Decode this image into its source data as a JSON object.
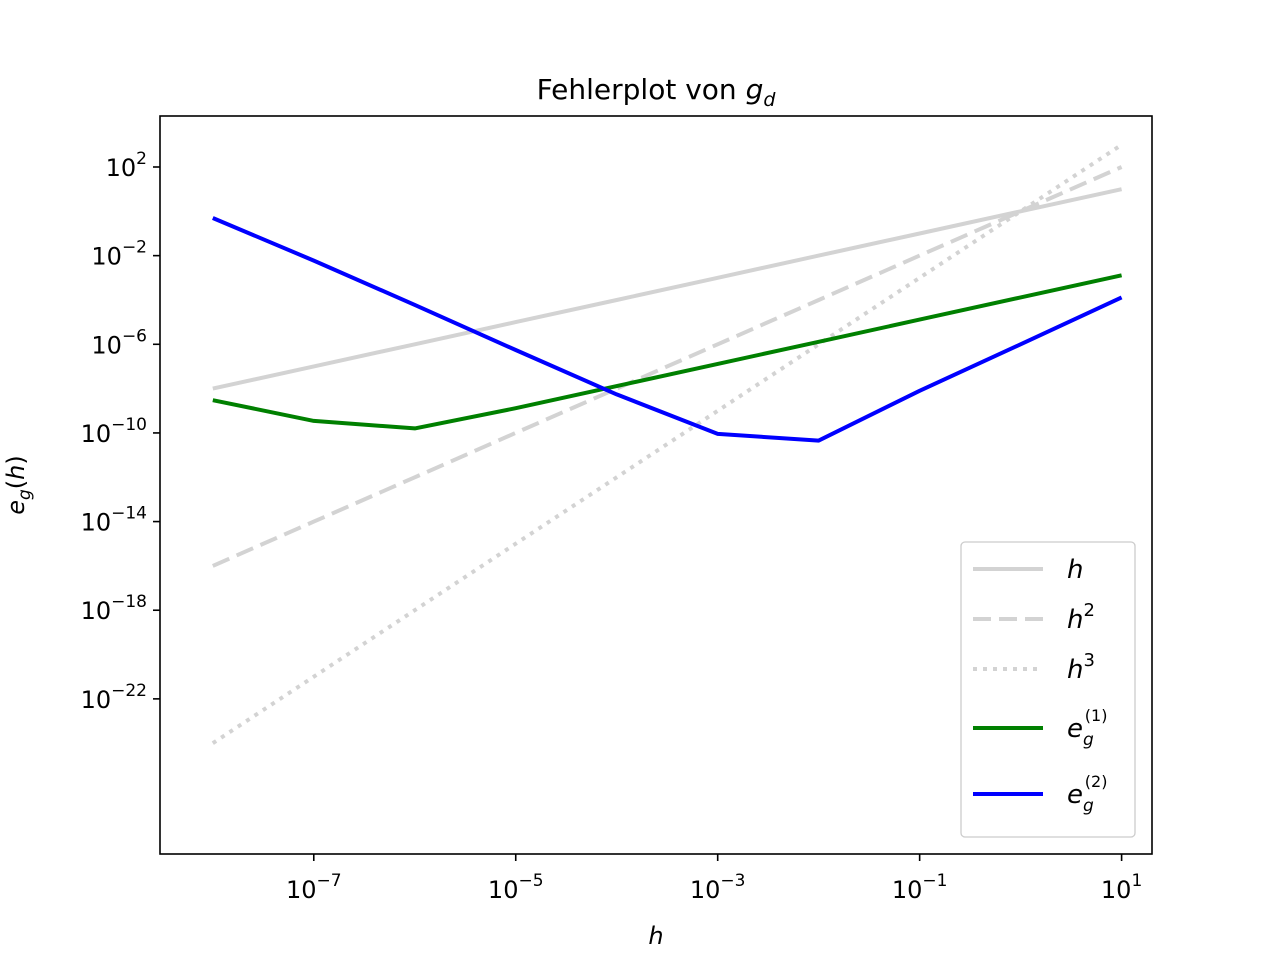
{
  "chart_data": {
    "type": "line",
    "title": "Fehlerplot von g_d",
    "title_parts": {
      "prefix": "Fehlerplot von ",
      "var": "g",
      "sub": "d"
    },
    "xlabel": "h",
    "ylabel": "e_g(h)",
    "ylabel_parts": {
      "e": "e",
      "g": "g",
      "paren": "(h)"
    },
    "x_scale": "log",
    "y_scale": "log",
    "xlim": [
      3e-09,
      20
    ],
    "ylim": [
      1e-29,
      20000.0
    ],
    "x_ticks": [
      {
        "value": 1e-07,
        "base": "10",
        "exp": "−7"
      },
      {
        "value": 1e-05,
        "base": "10",
        "exp": "−5"
      },
      {
        "value": 0.001,
        "base": "10",
        "exp": "−3"
      },
      {
        "value": 0.1,
        "base": "10",
        "exp": "−1"
      },
      {
        "value": 10,
        "base": "10",
        "exp": "1"
      }
    ],
    "y_ticks": [
      {
        "value": 100.0,
        "base": "10",
        "exp": "2"
      },
      {
        "value": 0.01,
        "base": "10",
        "exp": "−2"
      },
      {
        "value": 1e-06,
        "base": "10",
        "exp": "−6"
      },
      {
        "value": 1e-10,
        "base": "10",
        "exp": "−10"
      },
      {
        "value": 1e-14,
        "base": "10",
        "exp": "−14"
      },
      {
        "value": 1e-18,
        "base": "10",
        "exp": "−18"
      },
      {
        "value": 1e-22,
        "base": "10",
        "exp": "−22"
      }
    ],
    "grid": false,
    "legend_position": "lower-right",
    "x": [
      1e-08,
      1e-07,
      1e-06,
      1e-05,
      0.0001,
      0.001,
      0.01,
      0.1,
      1,
      10
    ],
    "series": [
      {
        "key": "h",
        "color": "#d3d3d3",
        "style": "solid",
        "values": [
          1e-08,
          1e-07,
          1e-06,
          1e-05,
          0.0001,
          0.001,
          0.01,
          0.1,
          1,
          10
        ]
      },
      {
        "key": "h2",
        "color": "#d3d3d3",
        "style": "dashed",
        "values": [
          1e-16,
          1e-14,
          1e-12,
          1e-10,
          1e-08,
          1e-06,
          0.0001,
          0.01,
          1,
          100
        ]
      },
      {
        "key": "h3",
        "color": "#d3d3d3",
        "style": "dotted",
        "values": [
          1e-24,
          1e-21,
          1e-18,
          1e-15,
          1e-12,
          1e-09,
          1e-06,
          0.001,
          1,
          1000
        ]
      },
      {
        "key": "eg1",
        "color": "#008000",
        "style": "solid",
        "values": [
          3e-09,
          3.5e-10,
          1.6e-10,
          1.3e-09,
          1.3e-08,
          1.3e-07,
          1.3e-06,
          1.3e-05,
          0.00013,
          0.0013
        ]
      },
      {
        "key": "eg2",
        "color": "#0000ff",
        "style": "solid",
        "values": [
          0.5,
          0.006,
          6e-05,
          5.5e-07,
          5.5e-09,
          9e-11,
          4.5e-11,
          8e-09,
          1e-06,
          0.00013
        ]
      }
    ],
    "legend": [
      {
        "key": "h",
        "label": "h",
        "exp": ""
      },
      {
        "key": "h2",
        "label": "h",
        "exp": "2"
      },
      {
        "key": "h3",
        "label": "h",
        "exp": "3"
      },
      {
        "key": "eg1",
        "label": "e",
        "sub": "g",
        "sup": "(1)"
      },
      {
        "key": "eg2",
        "label": "e",
        "sub": "g",
        "sup": "(2)"
      }
    ]
  }
}
